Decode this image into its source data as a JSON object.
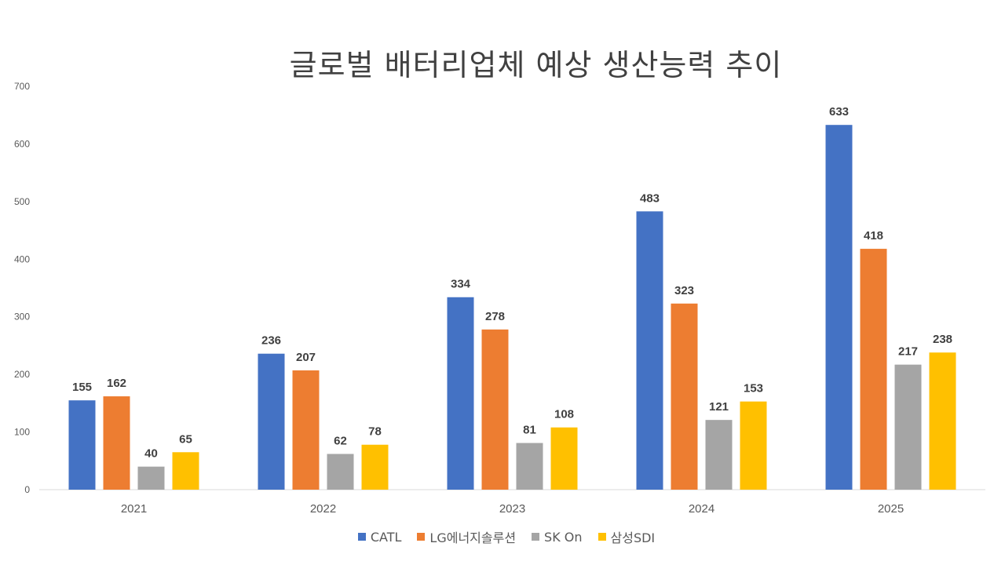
{
  "chart_data": {
    "type": "bar",
    "title": "글로벌 배터리업체 예상 생산능력 추이",
    "categories": [
      "2021",
      "2022",
      "2023",
      "2024",
      "2025"
    ],
    "series": [
      {
        "name": "CATL",
        "color": "#4472C4",
        "values": [
          155,
          236,
          334,
          483,
          633
        ]
      },
      {
        "name": "LG에너지솔루션",
        "color": "#ED7D31",
        "values": [
          162,
          207,
          278,
          323,
          418
        ]
      },
      {
        "name": "SK On",
        "color": "#A5A5A5",
        "values": [
          40,
          62,
          81,
          121,
          217
        ]
      },
      {
        "name": "삼성SDI",
        "color": "#FFC000",
        "values": [
          65,
          78,
          108,
          153,
          238
        ]
      }
    ],
    "ylim": [
      0,
      700
    ],
    "yticks": [
      0,
      100,
      200,
      300,
      400,
      500,
      600,
      700
    ],
    "grid": false,
    "legend_position": "bottom"
  }
}
